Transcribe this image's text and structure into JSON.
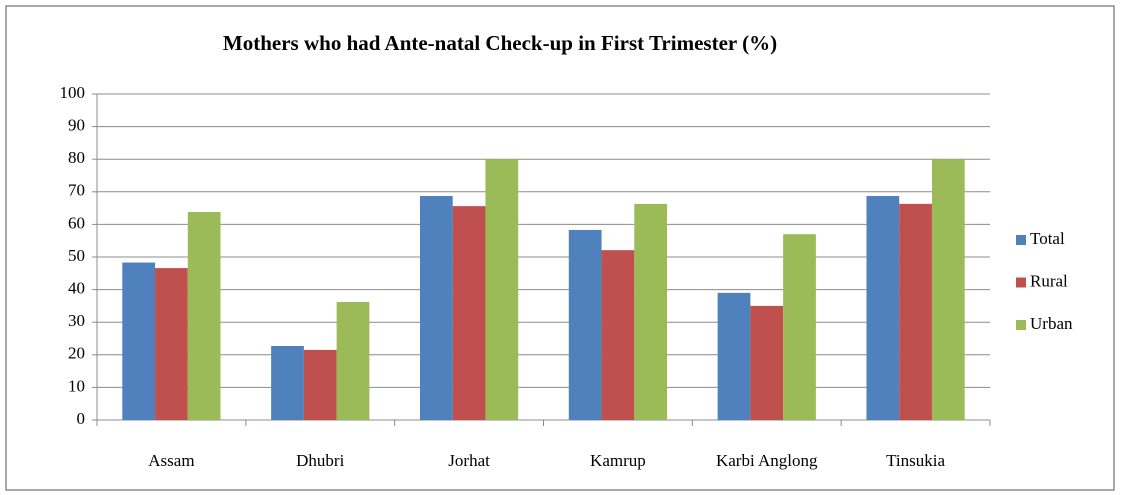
{
  "chart_data": {
    "type": "bar",
    "title": "Mothers who had Ante-natal Check-up in First Trimester  (%)",
    "categories": [
      "Assam",
      "Dhubri",
      "Jorhat",
      "Kamrup",
      "Karbi Anglong",
      "Tinsukia"
    ],
    "series": [
      {
        "name": "Total",
        "color": "#4f81bd",
        "values": [
          48.3,
          22.7,
          68.7,
          58.3,
          39,
          68.7
        ]
      },
      {
        "name": "Rural",
        "color": "#c0504d",
        "values": [
          46.6,
          21.5,
          65.6,
          52.1,
          35,
          66.3
        ]
      },
      {
        "name": "Urban",
        "color": "#9bbb59",
        "values": [
          63.8,
          36.2,
          80,
          66.3,
          57,
          80
        ]
      }
    ],
    "ylim": [
      0,
      100
    ],
    "yticks": [
      0,
      10,
      20,
      30,
      40,
      50,
      60,
      70,
      80,
      90,
      100
    ],
    "grid": true,
    "legend": "right"
  }
}
